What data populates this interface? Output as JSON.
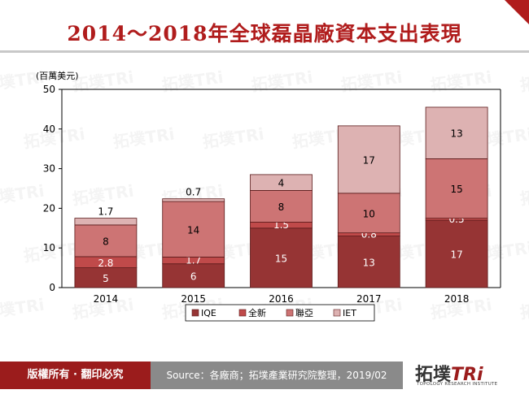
{
  "header": {
    "title": "2014～2018年全球磊晶廠資本支出表現"
  },
  "footer": {
    "copyright": "版權所有 · 翻印必究",
    "source": "Source：各廠商；拓墣產業研究院整理，2019/02",
    "logo_text": "拓墣",
    "logo_brand": "TRi",
    "logo_tagline": "TOPOLOGY RESEARCH INSTITUTE"
  },
  "watermark": {
    "text": "拓墣TRi"
  },
  "chart_data": {
    "type": "bar",
    "stacked": true,
    "unit_label": "(百萬美元)",
    "categories": [
      "2014",
      "2015",
      "2016",
      "2017",
      "2018"
    ],
    "ylim": [
      0,
      50
    ],
    "yticks": [
      "0",
      "10",
      "20",
      "30",
      "40",
      "50"
    ],
    "grid": false,
    "legend_position": "bottom",
    "series": [
      {
        "name": "IQE",
        "color": "#963434",
        "values": [
          5,
          6,
          15,
          13,
          17
        ],
        "labels": [
          "5",
          "6",
          "15",
          "13",
          "17"
        ]
      },
      {
        "name": "全新",
        "color": "#c04a4a",
        "values": [
          2.8,
          1.7,
          1.5,
          0.8,
          0.5
        ],
        "labels": [
          "2.8",
          "1.7",
          "1.5",
          "0.8",
          "0.5"
        ]
      },
      {
        "name": "聯亞",
        "color": "#cd7474",
        "values": [
          8,
          14,
          8,
          10,
          15
        ],
        "labels": [
          "8",
          "14",
          "8",
          "10",
          "15"
        ]
      },
      {
        "name": "IET",
        "color": "#ddb2b2",
        "values": [
          1.7,
          0.7,
          4,
          17,
          13
        ],
        "labels": [
          "1.7",
          "0.7",
          "4",
          "17",
          "13"
        ]
      }
    ]
  }
}
